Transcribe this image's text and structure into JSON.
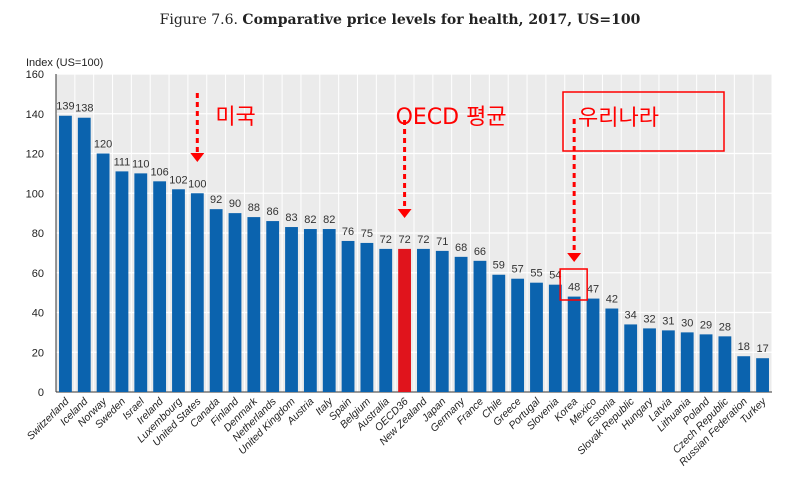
{
  "chart_data": {
    "type": "bar",
    "title_prefix": "Figure 7.6.",
    "title": "Comparative price levels for health, 2017, US=100",
    "ylabel": "Index (US=100)",
    "xlabel": "",
    "ylim": [
      0,
      160
    ],
    "yticks": [
      0,
      20,
      40,
      60,
      80,
      100,
      120,
      140,
      160
    ],
    "grid": true,
    "categories": [
      "Switzerland",
      "Iceland",
      "Norway",
      "Sweden",
      "Israel",
      "Ireland",
      "Luxembourg",
      "United States",
      "Canada",
      "Finland",
      "Denmark",
      "Netherlands",
      "United Kingdom",
      "Austria",
      "Italy",
      "Spain",
      "Belgium",
      "Australia",
      "OECD36",
      "New Zealand",
      "Japan",
      "Germany",
      "France",
      "Chile",
      "Greece",
      "Portugal",
      "Slovenia",
      "Korea",
      "Mexico",
      "Estonia",
      "Slovak Republic",
      "Hungary",
      "Latvia",
      "Lithuania",
      "Poland",
      "Czech Republic",
      "Russian Federation",
      "Turkey"
    ],
    "values": [
      139,
      138,
      120,
      111,
      110,
      106,
      102,
      100,
      92,
      90,
      88,
      86,
      83,
      82,
      82,
      76,
      75,
      72,
      72,
      72,
      71,
      68,
      66,
      59,
      57,
      55,
      54,
      48,
      47,
      42,
      34,
      32,
      31,
      30,
      29,
      28,
      18,
      17
    ],
    "highlight": "OECD36",
    "colors": {
      "bar": "#0b63ae",
      "highlight": "#e0141c",
      "annotation": "#ff0000",
      "background": "#ebebeb"
    },
    "annotations": [
      {
        "text": "미국",
        "target": "United States"
      },
      {
        "text": "OECD 평균",
        "target": "OECD36"
      },
      {
        "text": "우리나라",
        "target": "Korea",
        "boxed": true
      }
    ]
  }
}
